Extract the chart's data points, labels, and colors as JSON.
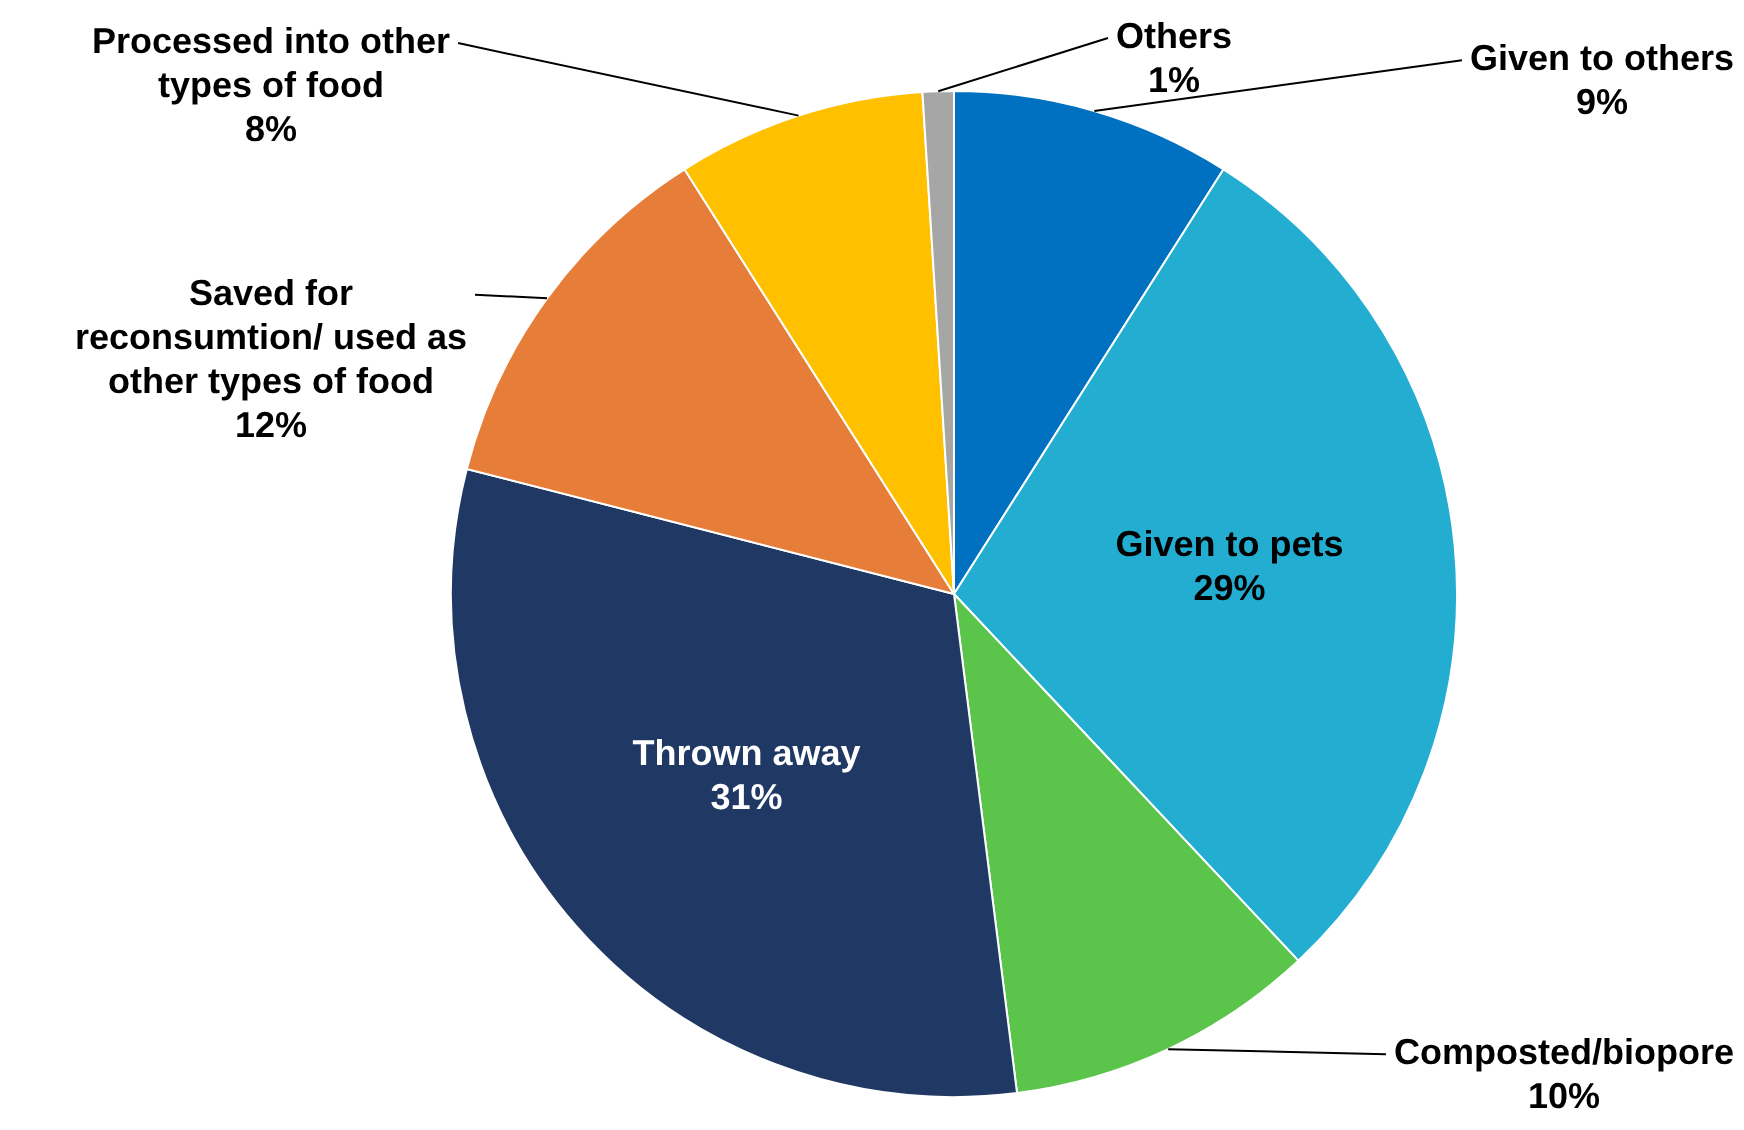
{
  "chart_data": {
    "type": "pie",
    "categories": [
      "Given to others",
      "Given to pets",
      "Composted/biopore",
      "Thrown away",
      "Saved for reconsumtion/ used as other types of food",
      "Processed into other types of food",
      "Others"
    ],
    "values": [
      9,
      29,
      10,
      31,
      12,
      8,
      1
    ],
    "value_labels": [
      "9%",
      "29%",
      "10%",
      "31%",
      "12%",
      "8%",
      "1%"
    ],
    "colors": [
      "#0070c0",
      "#23aed1",
      "#5bc44a",
      "#203864",
      "#e67e3a",
      "#ffc000",
      "#a6a6a6"
    ]
  }
}
